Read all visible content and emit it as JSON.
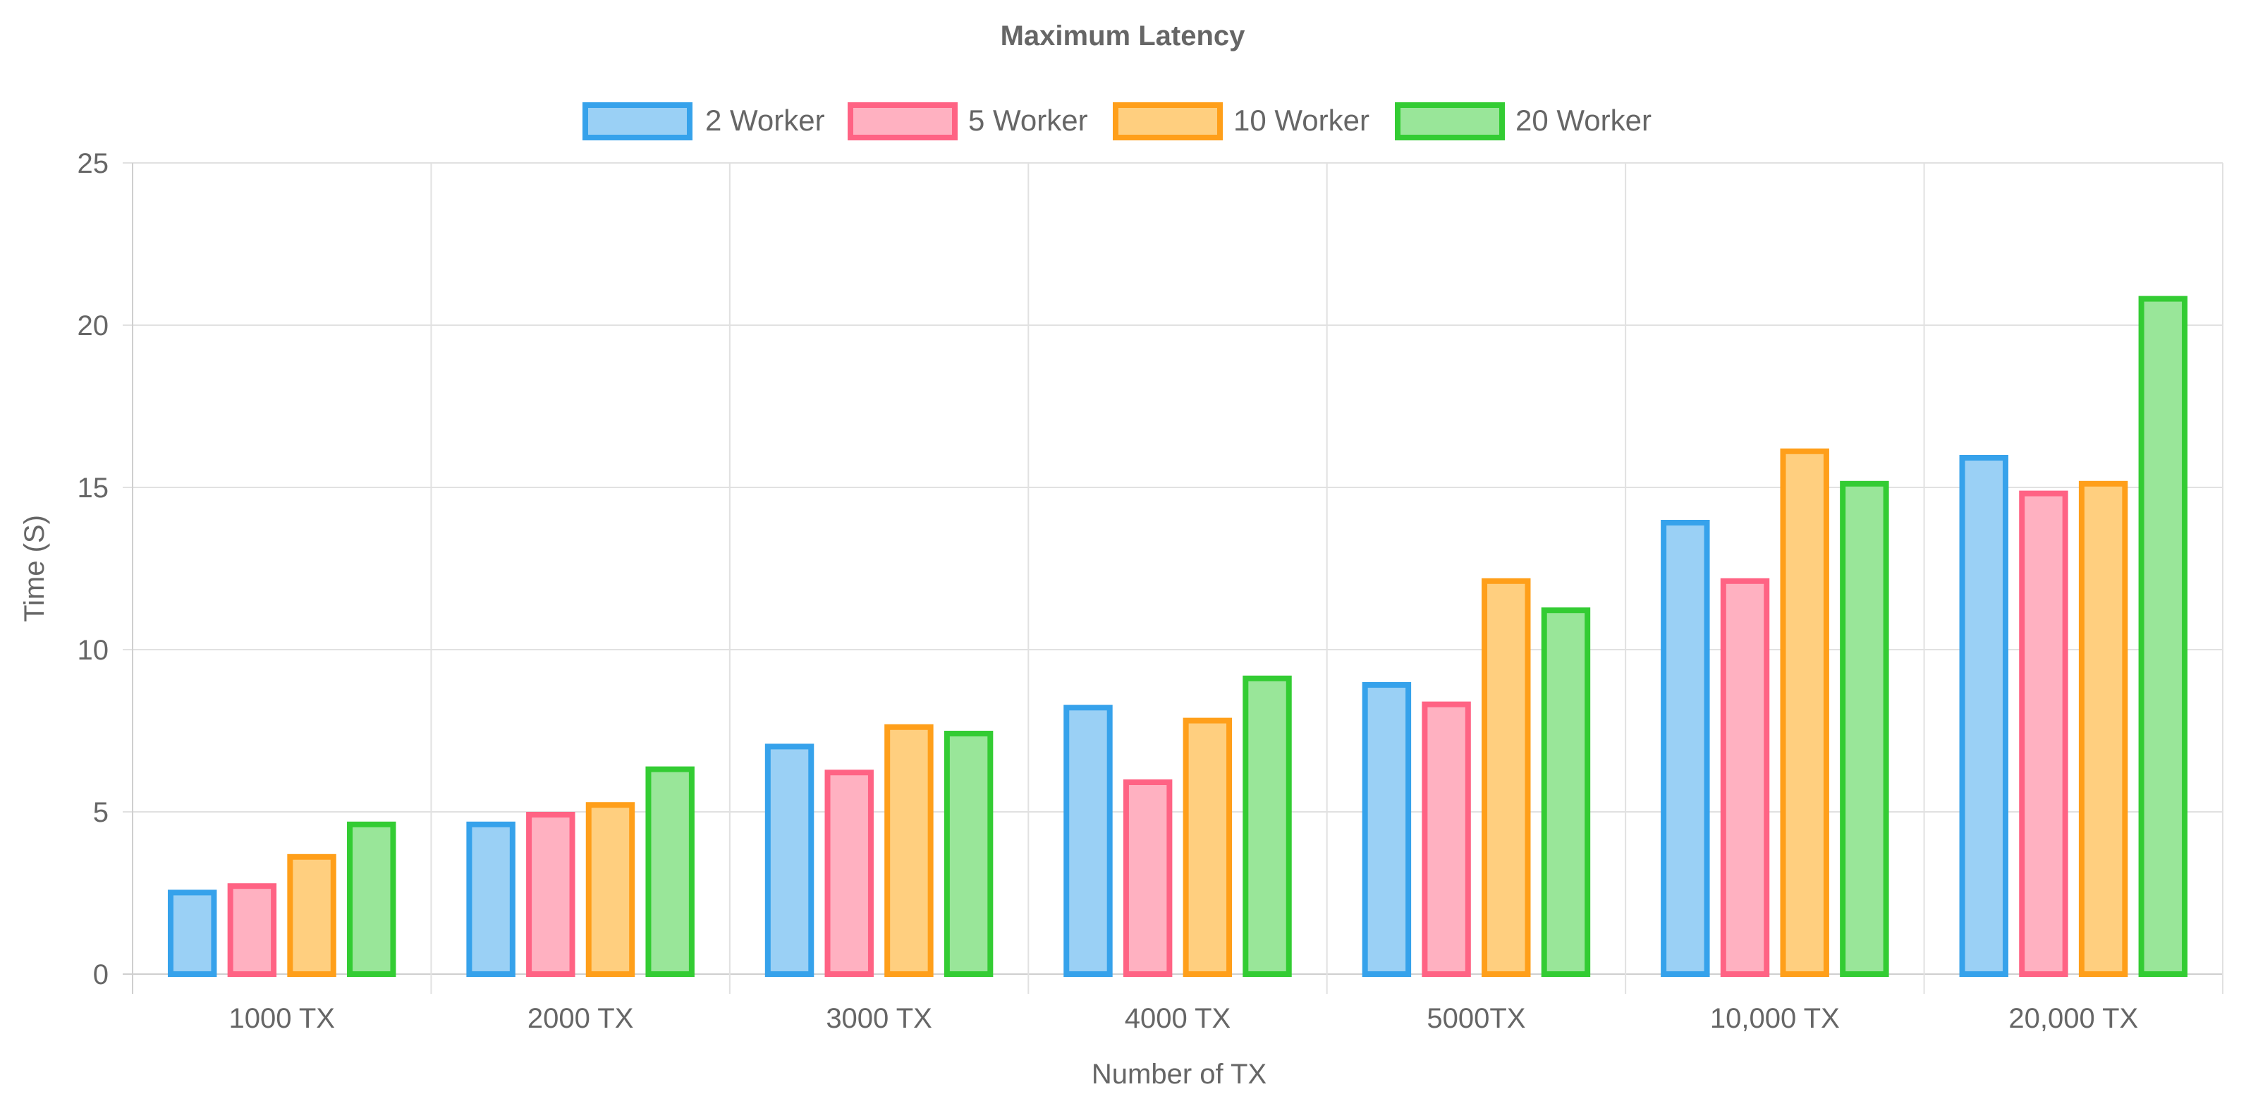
{
  "chart_data": {
    "type": "bar",
    "title": "Maximum Latency",
    "xlabel": "Number of TX",
    "ylabel": "Time (S)",
    "categories": [
      "1000 TX",
      "2000 TX",
      "3000 TX",
      "4000 TX",
      "5000TX",
      "10,000 TX",
      "20,000 TX"
    ],
    "series": [
      {
        "name": "2 Worker",
        "values": [
          2.6,
          4.7,
          7.1,
          8.3,
          9.0,
          14.0,
          16.0
        ],
        "border_color": "#36a2eb",
        "fill_color": "#9ad0f5"
      },
      {
        "name": "5 Worker",
        "values": [
          2.8,
          5.0,
          6.3,
          6.0,
          8.4,
          12.2,
          14.9
        ],
        "border_color": "#ff6384",
        "fill_color": "#ffb1c1"
      },
      {
        "name": "10 Worker",
        "values": [
          3.7,
          5.3,
          7.7,
          7.9,
          12.2,
          16.2,
          15.2
        ],
        "border_color": "#ff9f1a",
        "fill_color": "#ffcf7f"
      },
      {
        "name": "20 Worker",
        "values": [
          4.7,
          6.4,
          7.5,
          9.2,
          11.3,
          15.2,
          20.9
        ],
        "border_color": "#33cc33",
        "fill_color": "#99e699"
      }
    ],
    "ylim": [
      0,
      25
    ],
    "yticks": [
      0,
      5,
      10,
      15,
      20,
      25
    ],
    "grid": true,
    "legend_position": "top"
  },
  "colors": {
    "text": "#666666",
    "title": "#666666",
    "grid": "#e1e1e1",
    "axis": "#cfcfcf"
  }
}
